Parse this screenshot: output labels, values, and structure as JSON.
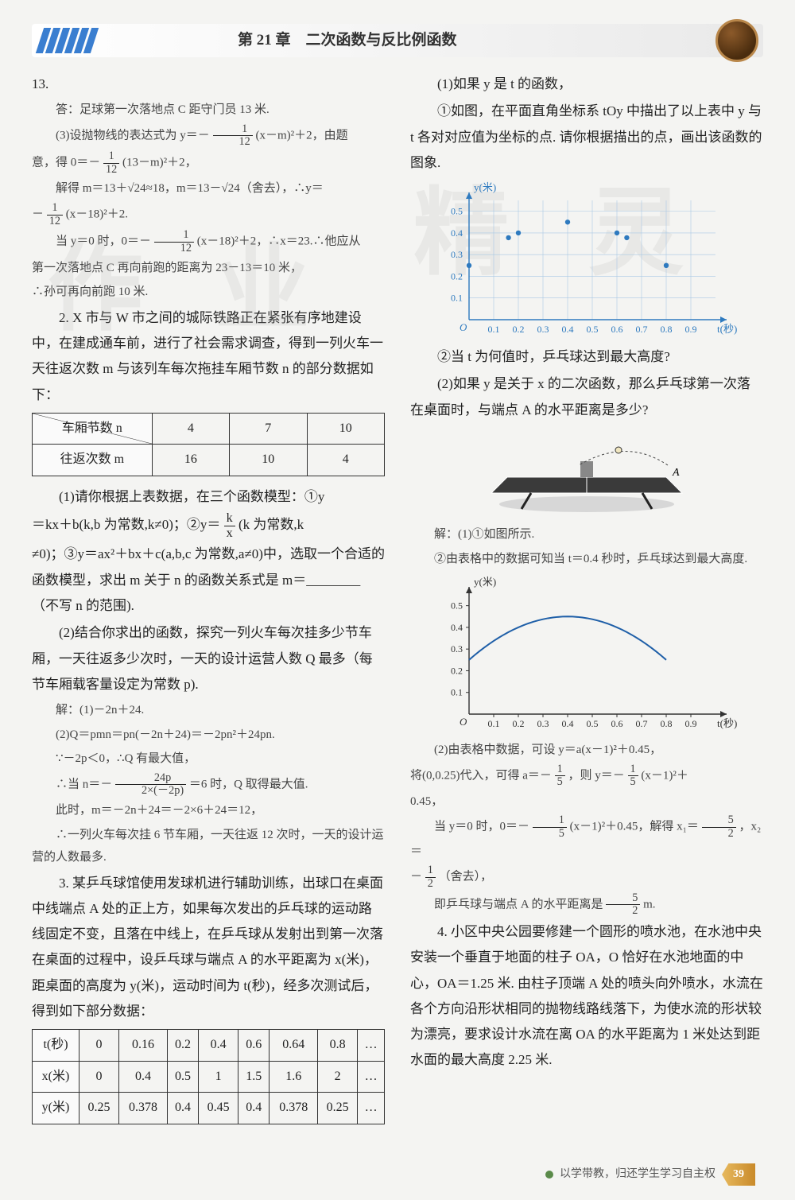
{
  "header": {
    "chapter": "第 21 章　二次函数与反比例函数"
  },
  "watermarks": {
    "a": "作",
    "b": "业",
    "c": "精",
    "d": "灵"
  },
  "left": {
    "l1": "13.",
    "l2": "答：足球第一次落地点 C 距守门员 13 米.",
    "l3a": "(3)设抛物线的表达式为 y＝－",
    "l3_num": "1",
    "l3_den": "12",
    "l3b": "(x－m)²＋2，由题",
    "l4a": "意，得 0＝－",
    "l4b": "(13－m)²＋2，",
    "l5a": "解得 m＝13＋√24≈18，m＝13－√24（舍去），∴y＝",
    "l6a": "－",
    "l6b": "(x－18)²＋2.",
    "l7a": "当 y＝0 时，0＝－",
    "l7b": "(x－18)²＋2，∴x＝23.∴他应从",
    "l8": "第一次落地点 C 再向前跑的距离为 23－13＝10 米，",
    "l9": "∴孙可再向前跑 10 米.",
    "p2a": "2. X 市与 W 市之间的城际铁路正在紧张有序地建设中，在建成通车前，进行了社会需求调查，得到一列火车一天往返次数 m 与该列车每次拖挂车厢节数 n 的部分数据如下：",
    "table1": {
      "head": [
        "车厢节数 n",
        "4",
        "7",
        "10"
      ],
      "row": [
        "往返次数 m",
        "16",
        "10",
        "4"
      ]
    },
    "p2b1": "(1)请你根据上表数据，在三个函数模型：①y",
    "p2b2a": "＝kx＋b(k,b 为常数,k≠0)；②y＝",
    "p2b2_num": "k",
    "p2b2_den": "x",
    "p2b2b": "(k 为常数,k",
    "p2b3": "≠0)；③y＝ax²＋bx＋c(a,b,c 为常数,a≠0)中，选取一个合适的函数模型，求出 m 关于 n 的函数关系式是 m＝________（不写 n 的范围).",
    "p2c": "(2)结合你求出的函数，探究一列火车每次挂多少节车厢，一天往返多少次时，一天的设计运营人数 Q 最多（每节车厢载客量设定为常数 p).",
    "s1": "解：(1)－2n＋24.",
    "s2": "(2)Q＝pmn＝pn(－2n＋24)＝－2pn²＋24pn.",
    "s3": "∵－2p＜0，∴Q 有最大值，",
    "s4a": "∴当 n＝－",
    "s4_num": "24p",
    "s4_den": "2×(－2p)",
    "s4b": "＝6 时，Q 取得最大值.",
    "s5": "此时，m＝－2n＋24＝－2×6＋24＝12，",
    "s6": "∴一列火车每次挂 6 节车厢，一天往返 12 次时，一天的设计运营的人数最多.",
    "p3": "3. 某乒乓球馆使用发球机进行辅助训练，出球口在桌面中线端点 A 处的正上方，如果每次发出的乒乓球的运动路线固定不变，且落在中线上，在乒乓球从发射出到第一次落在桌面的过程中，设乒乓球与端点 A 的水平距离为 x(米)，距桌面的高度为 y(米)，运动时间为 t(秒)，经多次测试后，得到如下部分数据：",
    "table2": {
      "rows": [
        [
          "t(秒)",
          "0",
          "0.16",
          "0.2",
          "0.4",
          "0.6",
          "0.64",
          "0.8",
          "…"
        ],
        [
          "x(米)",
          "0",
          "0.4",
          "0.5",
          "1",
          "1.5",
          "1.6",
          "2",
          "…"
        ],
        [
          "y(米)",
          "0.25",
          "0.378",
          "0.4",
          "0.45",
          "0.4",
          "0.378",
          "0.25",
          "…"
        ]
      ]
    }
  },
  "right": {
    "r1": "(1)如果 y 是 t 的函数，",
    "r2": "①如图，在平面直角坐标系 tOy 中描出了以上表中 y 与 t 各对对应值为坐标的点. 请你根据描出的点，画出该函数的图象.",
    "chart1": {
      "ylabel": "y(米)",
      "xlabel": "t(秒)",
      "xticks": [
        "0.1",
        "0.2",
        "0.3",
        "0.4",
        "0.5",
        "0.6",
        "0.7",
        "0.8",
        "0.9"
      ],
      "yticks": [
        "0.1",
        "0.2",
        "0.3",
        "0.4",
        "0.5"
      ],
      "axis_color": "#2e7abf",
      "grid_color": "#a9c8e4",
      "point_color": "#2e7abf",
      "points": [
        [
          0,
          0.25
        ],
        [
          0.16,
          0.378
        ],
        [
          0.2,
          0.4
        ],
        [
          0.4,
          0.45
        ],
        [
          0.6,
          0.4
        ],
        [
          0.64,
          0.378
        ],
        [
          0.8,
          0.25
        ]
      ]
    },
    "r3": "②当 t 为何值时，乒乓球达到最大高度?",
    "r4": "(2)如果 y 是关于 x 的二次函数，那么乒乓球第一次落在桌面时，与端点 A 的水平距离是多少?",
    "r5": "解：(1)①如图所示.",
    "r6": "②由表格中的数据可知当 t＝0.4 秒时，乒乓球达到最大高度.",
    "chart2": {
      "ylabel": "y(米)",
      "xlabel": "t(秒)",
      "xticks": [
        "0.1",
        "0.2",
        "0.3",
        "0.4",
        "0.5",
        "0.6",
        "0.7",
        "0.8",
        "0.9"
      ],
      "yticks": [
        "0.1",
        "0.2",
        "0.3",
        "0.4",
        "0.5"
      ],
      "axis_color": "#333333",
      "curve_color": "#1f5fa8"
    },
    "r7a": "(2)由表格中数据，可设 y＝a(x－1)²＋0.45，",
    "r7b": "将(0,0.25)代入，可得 a＝－",
    "r7_num1": "1",
    "r7_den1": "5",
    "r7c": "，则 y＝－",
    "r7d": "(x－1)²＋",
    "r7e": "0.45，",
    "r8a": "当 y＝0 时，0＝－",
    "r8b": "(x－1)²＋0.45，解得 x₁＝",
    "r8_num2": "5",
    "r8_den2": "2",
    "r8c": "，x₂＝",
    "r9a": "－",
    "r9_num": "1",
    "r9_den": "2",
    "r9b": "（舍去），",
    "r10a": "即乒乓球与端点 A 的水平距离是",
    "r10_num": "5",
    "r10_den": "2",
    "r10b": " m.",
    "p4": "4. 小区中央公园要修建一个圆形的喷水池，在水池中央安装一个垂直于地面的柱子 OA，O 恰好在水池地面的中心，OA＝1.25 米. 由柱子顶端 A 处的喷头向外喷水，水流在各个方向沿形状相同的抛物线路线落下，为使水流的形状较为漂亮，要求设计水流在离 OA 的水平距离为 1 米处达到距水面的最大高度 2.25 米."
  },
  "footer": {
    "text": "以学带教，归还学生学习自主权",
    "page": "39"
  }
}
